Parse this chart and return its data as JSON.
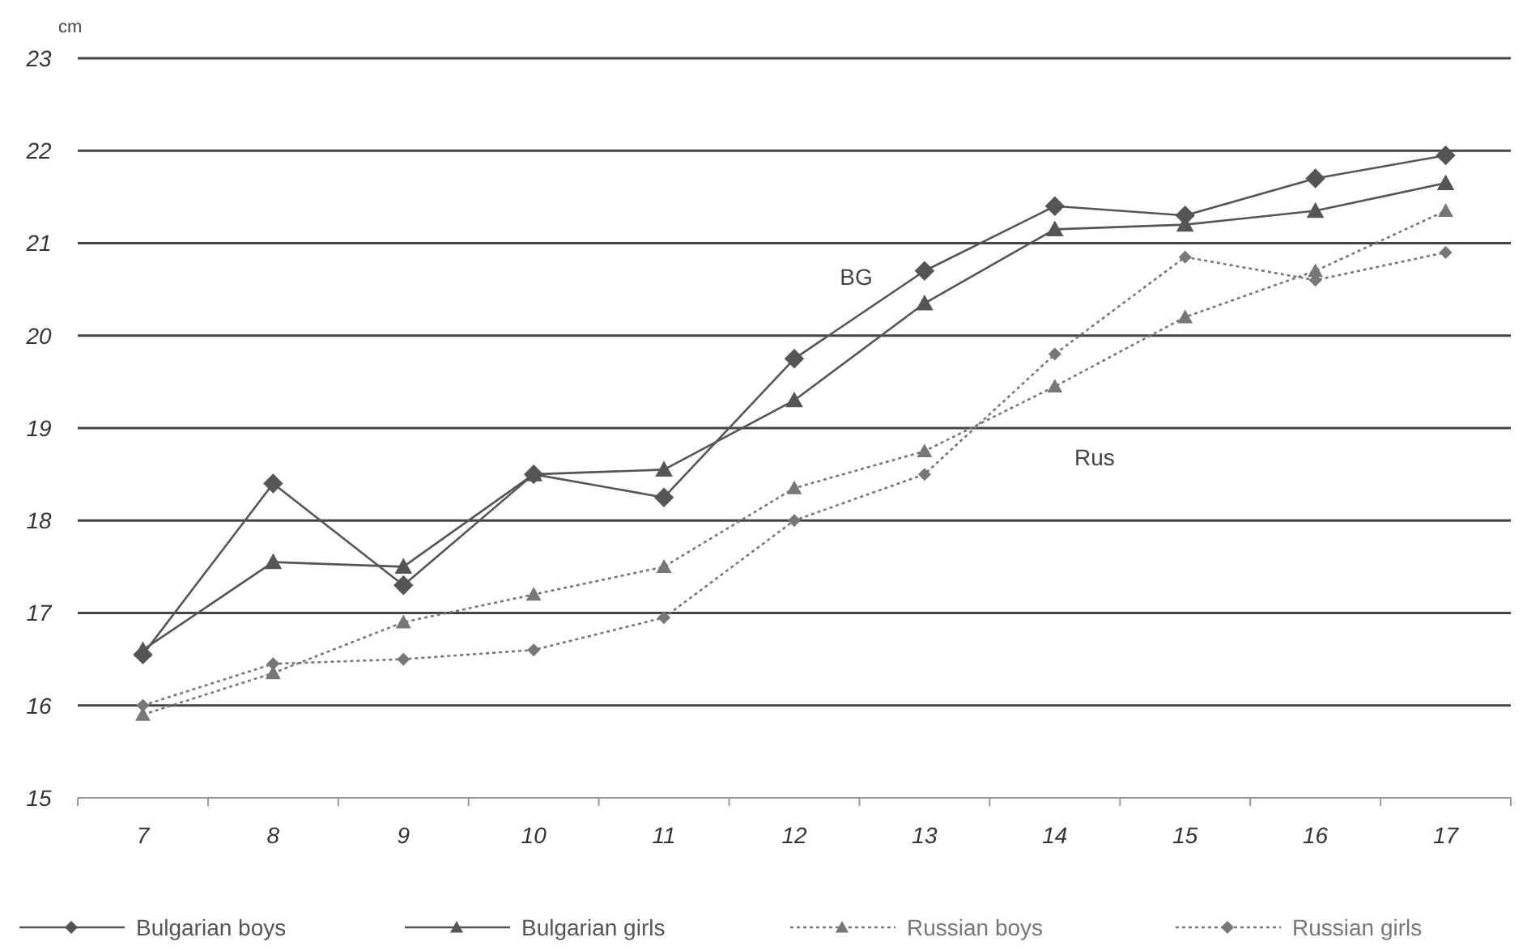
{
  "chart_data": {
    "type": "line",
    "ylabel": "cm",
    "categories": [
      "7",
      "8",
      "9",
      "10",
      "11",
      "12",
      "13",
      "14",
      "15",
      "16",
      "17"
    ],
    "ylim": [
      15,
      23
    ],
    "yticks": [
      15,
      16,
      17,
      18,
      19,
      20,
      21,
      22,
      23
    ],
    "grid": "y",
    "legend": "bottom",
    "annotations": [
      "BG",
      "Rus"
    ],
    "series": [
      {
        "name": "Bulgarian boys",
        "color": "#555555",
        "marker": "diamond",
        "line_style": "solid",
        "values": [
          16.55,
          18.4,
          17.3,
          18.5,
          18.25,
          19.75,
          20.7,
          21.4,
          21.3,
          21.7,
          21.95
        ]
      },
      {
        "name": "Bulgarian girls",
        "color": "#555555",
        "marker": "triangle",
        "line_style": "solid",
        "values": [
          16.6,
          17.55,
          17.5,
          18.5,
          18.55,
          19.3,
          20.35,
          21.15,
          21.2,
          21.35,
          21.65
        ]
      },
      {
        "name": "Russian boys",
        "color": "#777777",
        "marker": "triangle",
        "line_style": "dotted",
        "values": [
          15.9,
          16.35,
          16.9,
          17.2,
          17.5,
          18.35,
          18.75,
          19.45,
          20.2,
          20.7,
          21.35
        ]
      },
      {
        "name": "Russian girls",
        "color": "#777777",
        "marker": "diamond",
        "line_style": "dotted",
        "values": [
          16.0,
          16.45,
          16.5,
          16.6,
          16.95,
          18.0,
          18.5,
          19.8,
          20.85,
          20.6,
          20.9
        ]
      }
    ]
  }
}
